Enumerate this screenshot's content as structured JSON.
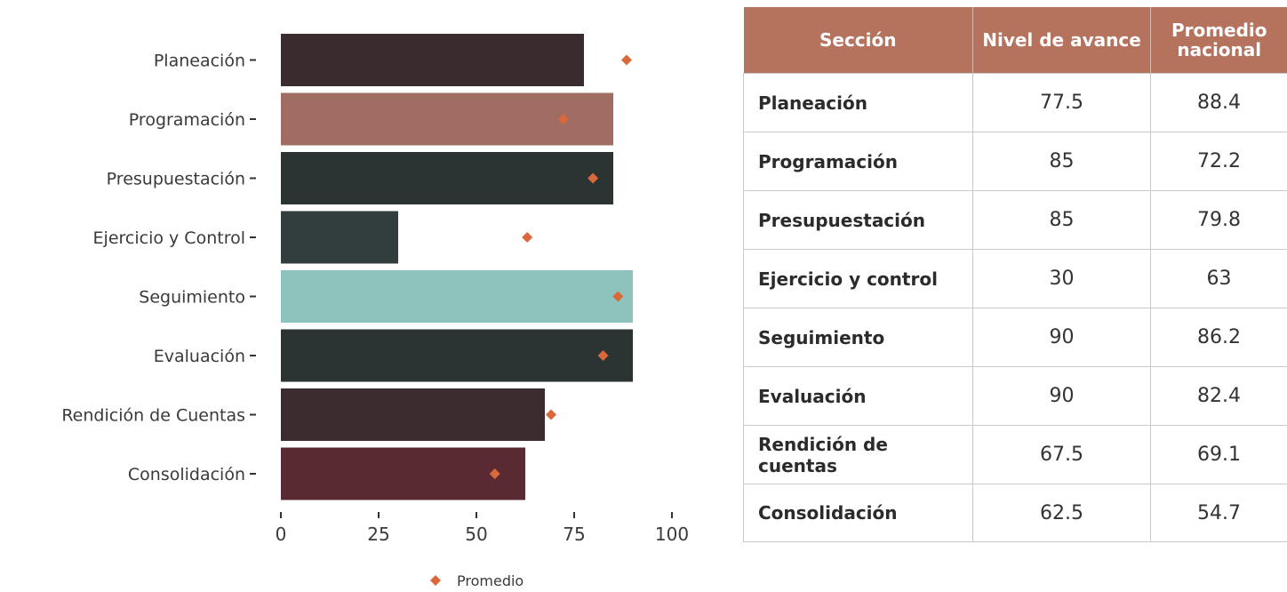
{
  "chart_data": {
    "type": "bar",
    "orientation": "horizontal",
    "categories": [
      "Planeación",
      "Programación",
      "Presupuestación",
      "Ejercicio y Control",
      "Seguimiento",
      "Evaluación",
      "Rendición de Cuentas",
      "Consolidación"
    ],
    "series": [
      {
        "values": [
          77.5,
          85,
          85,
          30,
          90,
          90,
          67.5,
          62.5
        ],
        "colors": [
          "#3a2b2e",
          "#a16c61",
          "#2c3333",
          "#323e3e",
          "#8ec2bd",
          "#2b3433",
          "#3c2c2f",
          "#5a2a33"
        ]
      },
      {
        "name": "Promedio",
        "marker": "diamond",
        "color": "#d9683b",
        "values": [
          88.4,
          72.2,
          79.8,
          63,
          86.2,
          82.4,
          69.1,
          54.7
        ]
      }
    ],
    "xticks": [
      "0",
      "25",
      "50",
      "75",
      "100"
    ],
    "xlim": [
      0,
      100
    ],
    "grid": false,
    "legend": {
      "position": "bottom",
      "entries": [
        "Promedio"
      ]
    }
  },
  "table": {
    "headers": [
      "Sección",
      "Nivel de avance",
      "Promedio nacional"
    ],
    "header_color": "#b5735e",
    "rows": [
      [
        "Planeación",
        "77.5",
        "88.4"
      ],
      [
        "Programación",
        "85",
        "72.2"
      ],
      [
        "Presupuestación",
        "85",
        "79.8"
      ],
      [
        "Ejercicio y control",
        "30",
        "63"
      ],
      [
        "Seguimiento",
        "90",
        "86.2"
      ],
      [
        "Evaluación",
        "90",
        "82.4"
      ],
      [
        "Rendición de cuentas",
        "67.5",
        "69.1"
      ],
      [
        "Consolidación",
        "62.5",
        "54.7"
      ]
    ]
  }
}
